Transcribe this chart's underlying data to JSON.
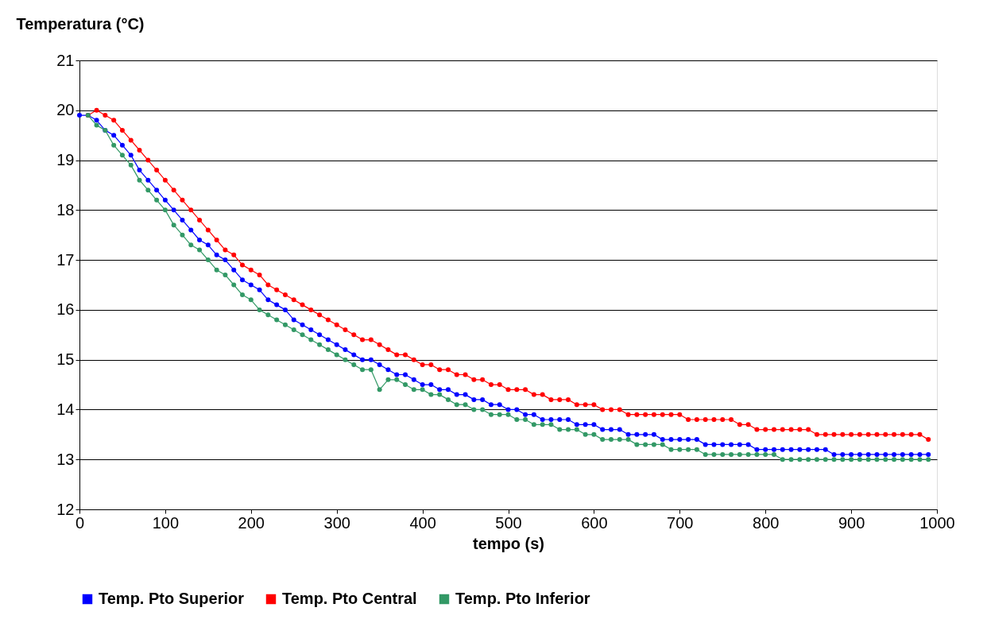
{
  "chart_data": {
    "type": "line",
    "xlabel": "tempo (s)",
    "ylabel": "Temperatura (°C)",
    "x": [
      0,
      10,
      20,
      30,
      40,
      50,
      60,
      70,
      80,
      90,
      100,
      110,
      120,
      130,
      140,
      150,
      160,
      170,
      180,
      190,
      200,
      210,
      220,
      230,
      240,
      250,
      260,
      270,
      280,
      290,
      300,
      310,
      320,
      330,
      340,
      350,
      360,
      370,
      380,
      390,
      400,
      410,
      420,
      430,
      440,
      450,
      460,
      470,
      480,
      490,
      500,
      510,
      520,
      530,
      540,
      550,
      560,
      570,
      580,
      590,
      600,
      610,
      620,
      630,
      640,
      650,
      660,
      670,
      680,
      690,
      700,
      710,
      720,
      730,
      740,
      750,
      760,
      770,
      780,
      790,
      800,
      810,
      820,
      830,
      840,
      850,
      860,
      870,
      880,
      890,
      900,
      910,
      920,
      930,
      940,
      950,
      960,
      970,
      980,
      990
    ],
    "xlim": [
      0,
      1000
    ],
    "xticks": [
      0,
      100,
      200,
      300,
      400,
      500,
      600,
      700,
      800,
      900,
      1000
    ],
    "ylim": [
      12,
      21
    ],
    "yticks": [
      12,
      13,
      14,
      15,
      16,
      17,
      18,
      19,
      20,
      21
    ],
    "grid": "y",
    "legend": "bottom",
    "marker": "circle",
    "line_style": "solid",
    "series": [
      {
        "name": "Temp. Pto Superior",
        "color": "#0000ff",
        "values": [
          19.9,
          19.9,
          19.8,
          19.6,
          19.5,
          19.3,
          19.1,
          18.8,
          18.6,
          18.4,
          18.2,
          18.0,
          17.8,
          17.6,
          17.4,
          17.3,
          17.1,
          17.0,
          16.8,
          16.6,
          16.5,
          16.4,
          16.2,
          16.1,
          16.0,
          15.8,
          15.7,
          15.6,
          15.5,
          15.4,
          15.3,
          15.2,
          15.1,
          15.0,
          15.0,
          14.9,
          14.8,
          14.7,
          14.7,
          14.6,
          14.5,
          14.5,
          14.4,
          14.4,
          14.3,
          14.3,
          14.2,
          14.2,
          14.1,
          14.1,
          14.0,
          14.0,
          13.9,
          13.9,
          13.8,
          13.8,
          13.8,
          13.8,
          13.7,
          13.7,
          13.7,
          13.6,
          13.6,
          13.6,
          13.5,
          13.5,
          13.5,
          13.5,
          13.4,
          13.4,
          13.4,
          13.4,
          13.4,
          13.3,
          13.3,
          13.3,
          13.3,
          13.3,
          13.3,
          13.2,
          13.2,
          13.2,
          13.2,
          13.2,
          13.2,
          13.2,
          13.2,
          13.2,
          13.1,
          13.1,
          13.1,
          13.1,
          13.1,
          13.1,
          13.1,
          13.1,
          13.1,
          13.1,
          13.1,
          13.1
        ]
      },
      {
        "name": "Temp. Pto Central",
        "color": "#ff0000",
        "values": [
          null,
          19.9,
          20.0,
          19.9,
          19.8,
          19.6,
          19.4,
          19.2,
          19.0,
          18.8,
          18.6,
          18.4,
          18.2,
          18.0,
          17.8,
          17.6,
          17.4,
          17.2,
          17.1,
          16.9,
          16.8,
          16.7,
          16.5,
          16.4,
          16.3,
          16.2,
          16.1,
          16.0,
          15.9,
          15.8,
          15.7,
          15.6,
          15.5,
          15.4,
          15.4,
          15.3,
          15.2,
          15.1,
          15.1,
          15.0,
          14.9,
          14.9,
          14.8,
          14.8,
          14.7,
          14.7,
          14.6,
          14.6,
          14.5,
          14.5,
          14.4,
          14.4,
          14.4,
          14.3,
          14.3,
          14.2,
          14.2,
          14.2,
          14.1,
          14.1,
          14.1,
          14.0,
          14.0,
          14.0,
          13.9,
          13.9,
          13.9,
          13.9,
          13.9,
          13.9,
          13.9,
          13.8,
          13.8,
          13.8,
          13.8,
          13.8,
          13.8,
          13.7,
          13.7,
          13.6,
          13.6,
          13.6,
          13.6,
          13.6,
          13.6,
          13.6,
          13.5,
          13.5,
          13.5,
          13.5,
          13.5,
          13.5,
          13.5,
          13.5,
          13.5,
          13.5,
          13.5,
          13.5,
          13.5,
          13.4
        ]
      },
      {
        "name": "Temp. Pto Inferior",
        "color": "#339966",
        "values": [
          null,
          19.9,
          19.7,
          19.6,
          19.3,
          19.1,
          18.9,
          18.6,
          18.4,
          18.2,
          18.0,
          17.7,
          17.5,
          17.3,
          17.2,
          17.0,
          16.8,
          16.7,
          16.5,
          16.3,
          16.2,
          16.0,
          15.9,
          15.8,
          15.7,
          15.6,
          15.5,
          15.4,
          15.3,
          15.2,
          15.1,
          15.0,
          14.9,
          14.8,
          14.8,
          14.4,
          14.6,
          14.6,
          14.5,
          14.4,
          14.4,
          14.3,
          14.3,
          14.2,
          14.1,
          14.1,
          14.0,
          14.0,
          13.9,
          13.9,
          13.9,
          13.8,
          13.8,
          13.7,
          13.7,
          13.7,
          13.6,
          13.6,
          13.6,
          13.5,
          13.5,
          13.4,
          13.4,
          13.4,
          13.4,
          13.3,
          13.3,
          13.3,
          13.3,
          13.2,
          13.2,
          13.2,
          13.2,
          13.1,
          13.1,
          13.1,
          13.1,
          13.1,
          13.1,
          13.1,
          13.1,
          13.1,
          13.0,
          13.0,
          13.0,
          13.0,
          13.0,
          13.0,
          13.0,
          13.0,
          13.0,
          13.0,
          13.0,
          13.0,
          13.0,
          13.0,
          13.0,
          13.0,
          13.0,
          13.0
        ]
      }
    ]
  }
}
